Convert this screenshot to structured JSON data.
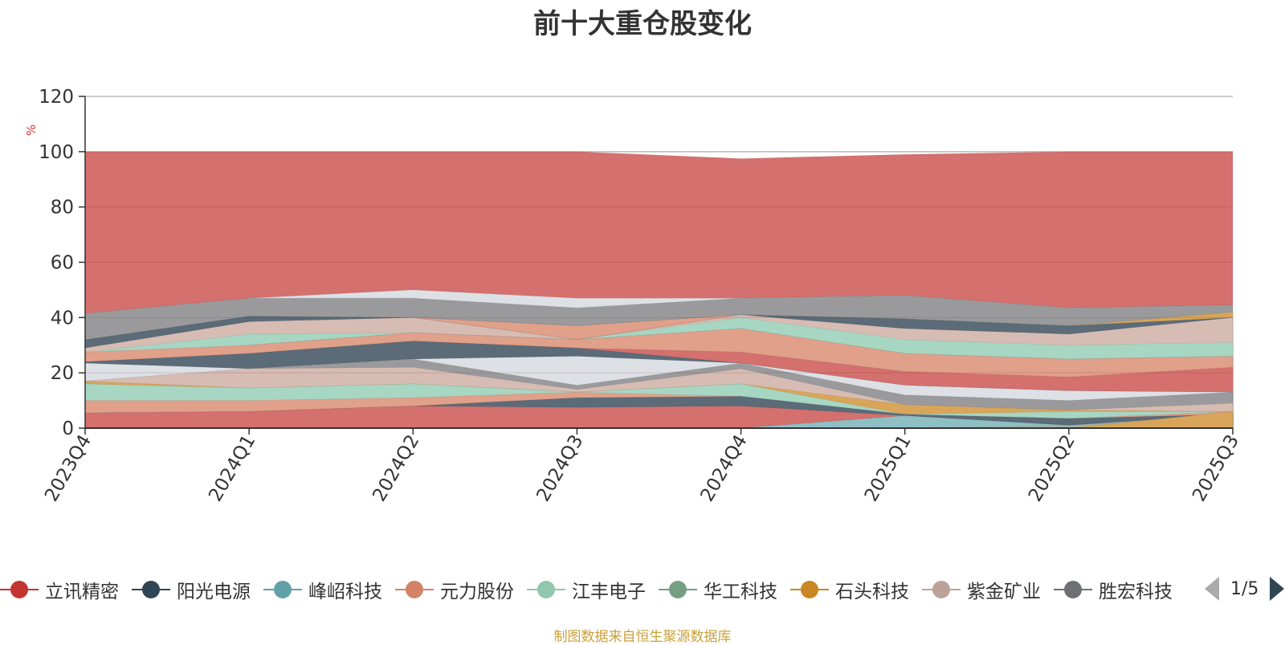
{
  "chart_data": {
    "type": "area",
    "title": "前十大重仓股变化",
    "ylabel": "%",
    "ylim": [
      0,
      120
    ],
    "y_ticks": [
      0,
      20,
      40,
      60,
      80,
      100,
      120
    ],
    "grid": true,
    "legend_position": "bottom",
    "categories": [
      "2023Q4",
      "2024Q1",
      "2024Q2",
      "2024Q3",
      "2024Q4",
      "2025Q1",
      "2025Q2",
      "2025Q3"
    ],
    "layers": [
      {
        "name": "立讯精密",
        "color": "#d4706d",
        "values": [
          100,
          100,
          100,
          100,
          97.5,
          99,
          100,
          100
        ]
      },
      {
        "name": "",
        "color": "#dde1e6",
        "values": [
          41.5,
          47,
          50,
          47,
          47,
          48,
          43.5,
          44.5
        ]
      },
      {
        "name": "",
        "color": "#9a9a9c",
        "values": [
          41.5,
          47,
          47,
          43.5,
          47,
          48,
          43.5,
          44.5
        ]
      },
      {
        "name": "石头科技",
        "color": "#d9a55a",
        "values": [
          29.5,
          40,
          40,
          37,
          41,
          39.5,
          37,
          42
        ]
      },
      {
        "name": "",
        "color": "#9fb6a5",
        "values": [
          29.5,
          40,
          40,
          37,
          41,
          39.5,
          37,
          40
        ]
      },
      {
        "name": "元力股份",
        "color": "#e0a08a",
        "values": [
          29.5,
          40,
          40,
          37,
          41,
          36,
          34,
          40
        ]
      },
      {
        "name": "阳光电源",
        "color": "#5b6b78",
        "values": [
          32,
          40.5,
          40,
          32,
          41,
          39.5,
          37,
          40
        ]
      },
      {
        "name": "紫金矿业",
        "color": "#d7bcb3",
        "values": [
          29,
          38.5,
          40,
          32,
          41,
          36,
          34,
          40
        ]
      },
      {
        "name": "江丰电子",
        "color": "#a7d6c3",
        "values": [
          27.5,
          34,
          34.5,
          32,
          40,
          32,
          30,
          31
        ]
      },
      {
        "name": "峰岹科技",
        "color": "#8ebfc5",
        "values": [
          26,
          30,
          34.5,
          32,
          36,
          27,
          25,
          26
        ]
      },
      {
        "name": "元力股份",
        "color": "#e0a08a",
        "values": [
          27.5,
          30,
          34.5,
          32,
          36,
          27,
          25,
          26
        ]
      },
      {
        "name": "立讯精密",
        "color": "#d4706d",
        "values": [
          24,
          27,
          31.5,
          29,
          27.5,
          20.5,
          18.5,
          22
        ]
      },
      {
        "name": "阳光电源",
        "color": "#5b6b78",
        "values": [
          24,
          27,
          31.5,
          29,
          23.5,
          15.5,
          13.5,
          13
        ]
      },
      {
        "name": "",
        "color": "#dde1e6",
        "values": [
          23.5,
          21.5,
          25,
          26,
          23.5,
          15.5,
          13.5,
          13
        ]
      },
      {
        "name": "",
        "color": "#9a9a9c",
        "values": [
          17,
          21.5,
          25,
          15.5,
          23.5,
          12,
          10,
          13
        ]
      },
      {
        "name": "紫金矿业",
        "color": "#d7bcb3",
        "values": [
          17,
          21.5,
          22,
          14,
          21.5,
          8.5,
          6.5,
          9
        ]
      },
      {
        "name": "石头科技",
        "color": "#d9a55a",
        "values": [
          17,
          14.5,
          16,
          13,
          16,
          8.5,
          6.5,
          6
        ]
      },
      {
        "name": "江丰电子",
        "color": "#a7d6c3",
        "values": [
          16,
          14.5,
          16,
          13,
          16,
          5,
          6,
          6
        ]
      },
      {
        "name": "元力股份",
        "color": "#e0a08a",
        "values": [
          10,
          10,
          11,
          13,
          11.5,
          5,
          3.5,
          6
        ]
      },
      {
        "name": "阳光电源",
        "color": "#5b6b78",
        "values": [
          5.5,
          6,
          8,
          11,
          11.5,
          5,
          3.5,
          5
        ]
      },
      {
        "name": "立讯精密",
        "color": "#d4706d",
        "values": [
          5.5,
          6,
          8,
          7.5,
          8,
          4.5,
          1,
          5
        ]
      },
      {
        "name": "峰岹科技",
        "color": "#8ebfc5",
        "values": [
          0,
          0,
          0,
          0,
          0,
          4.5,
          1,
          5
        ]
      },
      {
        "name": "华工科技",
        "color": "#9fb6a5",
        "values": [
          0,
          0,
          0,
          0,
          0,
          0,
          1,
          4.5
        ]
      },
      {
        "name": "石头科技",
        "color": "#d9a55a",
        "values": [
          0,
          0,
          0,
          0,
          0,
          0,
          0,
          6
        ]
      }
    ]
  },
  "legend": {
    "items": [
      {
        "name": "立讯精密",
        "color": "#c23531"
      },
      {
        "name": "阳光电源",
        "color": "#2f4554"
      },
      {
        "name": "峰岹科技",
        "color": "#61a0a8"
      },
      {
        "name": "元力股份",
        "color": "#d48265"
      },
      {
        "name": "江丰电子",
        "color": "#91c7ae"
      },
      {
        "name": "华工科技",
        "color": "#749f83"
      },
      {
        "name": "石头科技",
        "color": "#ca8622"
      },
      {
        "name": "紫金矿业",
        "color": "#bda29a"
      },
      {
        "name": "胜宏科技",
        "color": "#6e7074"
      }
    ],
    "page": "1/5"
  },
  "source_note": "制图数据来自恒生聚源数据库"
}
